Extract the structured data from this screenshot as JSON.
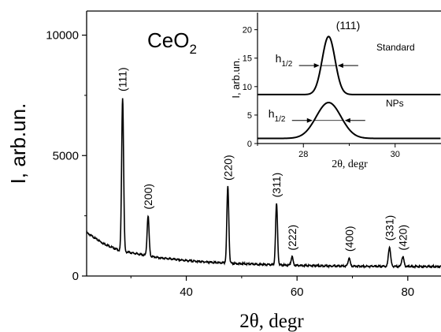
{
  "chart_data": [
    {
      "type": "line",
      "title": "CeO₂",
      "title_parts": [
        "CeO",
        "2"
      ],
      "xlabel": "2θ, degr",
      "ylabel": "I, arb.un.",
      "xlim": [
        22,
        86
      ],
      "ylim": [
        0,
        11000
      ],
      "xticks": [
        40,
        60,
        80
      ],
      "yticks": [
        0,
        5000,
        10000
      ],
      "grid": false,
      "baseline": [
        [
          22,
          1800
        ],
        [
          25,
          1350
        ],
        [
          28,
          1050
        ],
        [
          35,
          760
        ],
        [
          40,
          640
        ],
        [
          45,
          560
        ],
        [
          50,
          510
        ],
        [
          55,
          470
        ],
        [
          60,
          440
        ],
        [
          65,
          420
        ],
        [
          70,
          410
        ],
        [
          75,
          400
        ],
        [
          80,
          395
        ],
        [
          86,
          390
        ]
      ],
      "peaks": [
        {
          "label": "(111)",
          "x": 28.5,
          "y": 7400,
          "width": 0.35
        },
        {
          "label": "(200)",
          "x": 33.1,
          "y": 2500,
          "width": 0.35
        },
        {
          "label": "(220)",
          "x": 47.5,
          "y": 3700,
          "width": 0.35
        },
        {
          "label": "(311)",
          "x": 56.3,
          "y": 3000,
          "width": 0.35
        },
        {
          "label": "(222)",
          "x": 59.1,
          "y": 800,
          "width": 0.35
        },
        {
          "label": "(400)",
          "x": 69.4,
          "y": 750,
          "width": 0.35
        },
        {
          "label": "(331)",
          "x": 76.7,
          "y": 1200,
          "width": 0.4
        },
        {
          "label": "(420)",
          "x": 79.1,
          "y": 800,
          "width": 0.4
        }
      ]
    },
    {
      "type": "line",
      "title": "",
      "xlabel": "2θ, degr",
      "ylabel": "I, arb.un.",
      "xlim": [
        27.0,
        31.0
      ],
      "ylim": [
        0,
        23
      ],
      "xticks": [
        28,
        30
      ],
      "yticks": [
        0,
        5,
        10,
        15,
        20
      ],
      "peak_label": "(111)",
      "series": [
        {
          "name": "Standard",
          "center": 28.55,
          "baseline": 8.6,
          "height": 10.2,
          "sigma": 0.14,
          "halfwidth_label": "h1/2"
        },
        {
          "name": "NPs",
          "center": 28.55,
          "baseline": 0.9,
          "height": 6.3,
          "sigma": 0.27,
          "halfwidth_label": "h1/2"
        }
      ]
    }
  ]
}
